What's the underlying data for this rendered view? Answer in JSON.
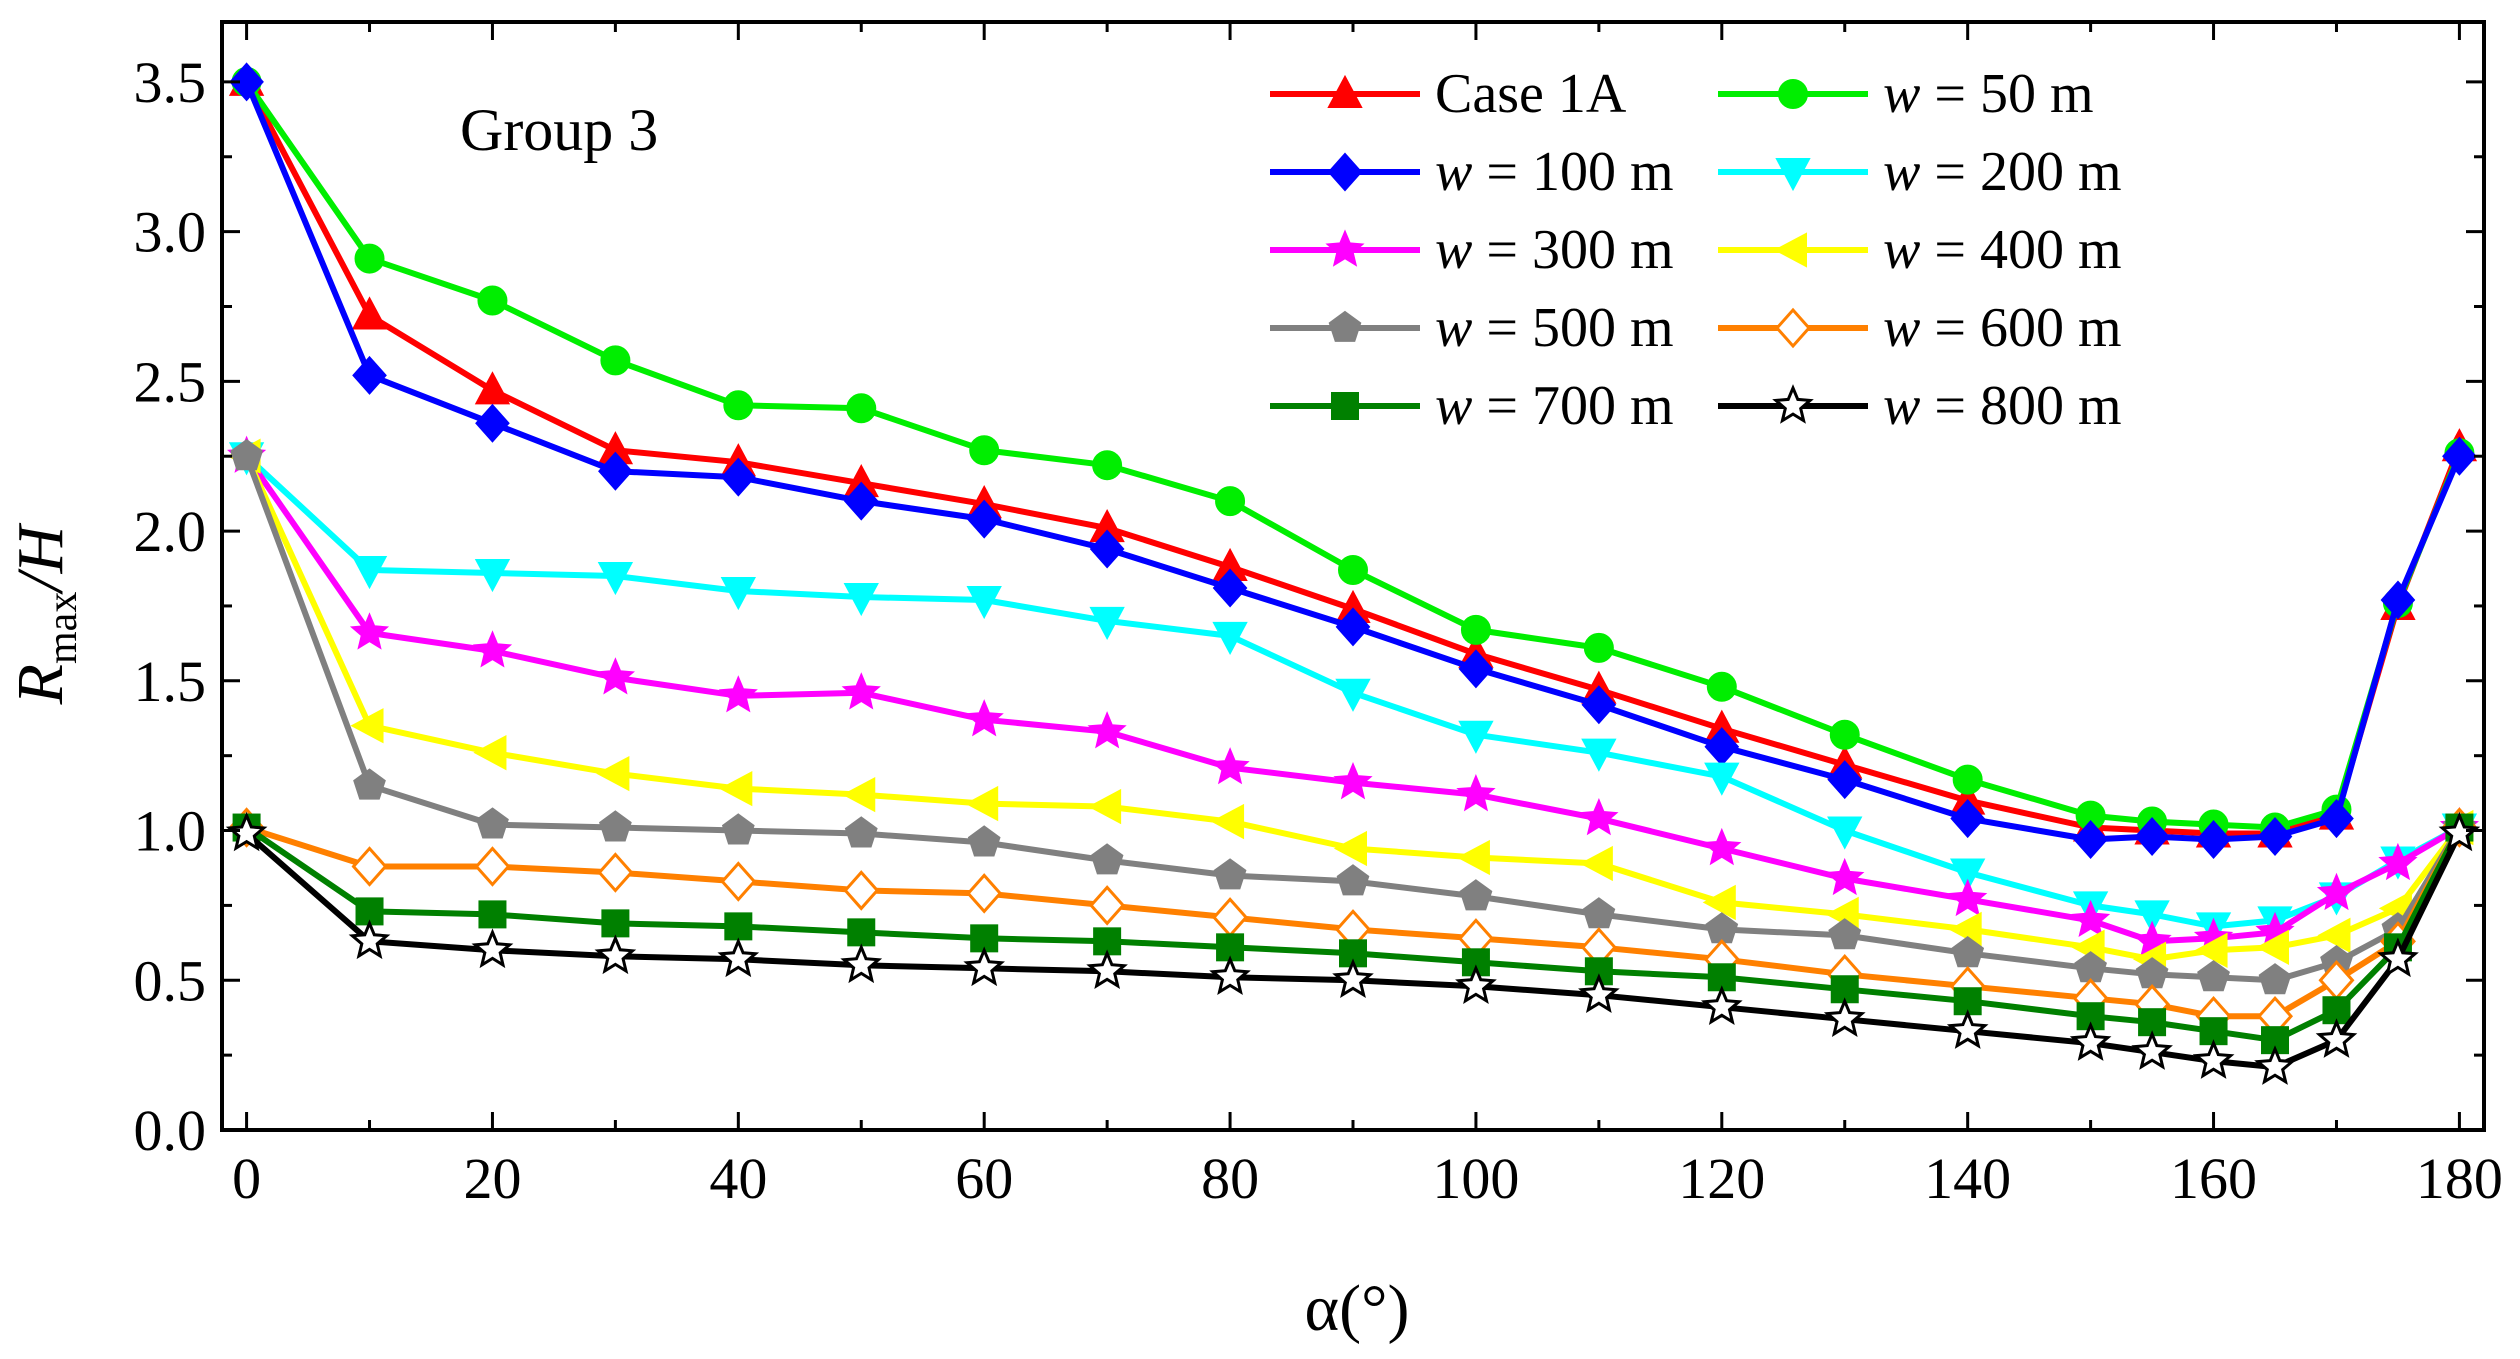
{
  "chart_data": {
    "type": "line",
    "title": "",
    "annotation": "Group 3",
    "xlabel": "α(°)",
    "ylabel_main": "R",
    "ylabel_sub": "max",
    "ylabel_tail": "/H",
    "xlim": [
      -2,
      182
    ],
    "ylim": [
      0,
      3.7
    ],
    "xticks": [
      0,
      20,
      40,
      60,
      80,
      100,
      120,
      140,
      160,
      180
    ],
    "xtick_labels": [
      "0",
      "20",
      "40",
      "60",
      "80",
      "100",
      "120",
      "140",
      "160",
      "180"
    ],
    "yticks": [
      0,
      0.5,
      1.0,
      1.5,
      2.0,
      2.5,
      3.0,
      3.5
    ],
    "ytick_labels": [
      "0.0",
      "0.5",
      "1.0",
      "1.5",
      "2.0",
      "2.5",
      "3.0",
      "3.5"
    ],
    "x": [
      0,
      10,
      20,
      30,
      40,
      50,
      60,
      70,
      80,
      90,
      100,
      110,
      120,
      130,
      140,
      150,
      155,
      160,
      165,
      170,
      175,
      180
    ],
    "legend_position": "top-right",
    "series": [
      {
        "name": "Case 1A",
        "italic_prefix": "",
        "label": "Case 1A",
        "color": "#ff0000",
        "marker": "triangle-up",
        "filled": true,
        "values": [
          3.5,
          2.72,
          2.47,
          2.27,
          2.23,
          2.16,
          2.09,
          2.01,
          1.88,
          1.74,
          1.59,
          1.47,
          1.34,
          1.22,
          1.1,
          1.01,
          1.0,
          0.99,
          0.99,
          1.05,
          1.75,
          2.28
        ]
      },
      {
        "name": "w = 50 m",
        "italic_prefix": "w",
        "label": " = 50 m",
        "color": "#00ee00",
        "marker": "circle",
        "filled": true,
        "values": [
          3.5,
          2.91,
          2.77,
          2.57,
          2.42,
          2.41,
          2.27,
          2.22,
          2.1,
          1.87,
          1.67,
          1.61,
          1.48,
          1.32,
          1.17,
          1.05,
          1.03,
          1.02,
          1.01,
          1.07,
          1.76,
          2.26
        ]
      },
      {
        "name": "w = 100 m",
        "italic_prefix": "w",
        "label": " = 100 m",
        "color": "#0000ff",
        "marker": "diamond",
        "filled": true,
        "values": [
          3.5,
          2.52,
          2.36,
          2.2,
          2.18,
          2.1,
          2.04,
          1.94,
          1.81,
          1.68,
          1.54,
          1.42,
          1.28,
          1.17,
          1.04,
          0.97,
          0.98,
          0.97,
          0.98,
          1.04,
          1.77,
          2.25
        ]
      },
      {
        "name": "w = 200 m",
        "italic_prefix": "w",
        "label": " = 200 m",
        "color": "#00ffff",
        "marker": "triangle-down",
        "filled": true,
        "values": [
          2.25,
          1.87,
          1.86,
          1.85,
          1.8,
          1.78,
          1.77,
          1.7,
          1.65,
          1.46,
          1.32,
          1.26,
          1.18,
          1.0,
          0.86,
          0.75,
          0.72,
          0.68,
          0.7,
          0.78,
          0.9,
          1.01
        ]
      },
      {
        "name": "w = 300 m",
        "italic_prefix": "w",
        "label": " = 300 m",
        "color": "#ff00ff",
        "marker": "star",
        "filled": true,
        "values": [
          2.25,
          1.66,
          1.6,
          1.51,
          1.45,
          1.46,
          1.37,
          1.33,
          1.21,
          1.16,
          1.12,
          1.04,
          0.94,
          0.84,
          0.77,
          0.7,
          0.63,
          0.64,
          0.66,
          0.79,
          0.89,
          1.01
        ]
      },
      {
        "name": "w = 400 m",
        "italic_prefix": "w",
        "label": " = 400 m",
        "color": "#ffff00",
        "marker": "triangle-left",
        "filled": true,
        "values": [
          2.25,
          1.35,
          1.26,
          1.19,
          1.14,
          1.12,
          1.09,
          1.08,
          1.03,
          0.94,
          0.91,
          0.89,
          0.76,
          0.72,
          0.67,
          0.61,
          0.57,
          0.6,
          0.61,
          0.65,
          0.74,
          1.01
        ]
      },
      {
        "name": "w = 500 m",
        "italic_prefix": "w",
        "label": " = 500 m",
        "color": "#808080",
        "marker": "pentagon",
        "filled": true,
        "values": [
          2.25,
          1.15,
          1.02,
          1.01,
          1.0,
          0.99,
          0.96,
          0.9,
          0.85,
          0.83,
          0.78,
          0.72,
          0.67,
          0.65,
          0.59,
          0.54,
          0.52,
          0.51,
          0.5,
          0.56,
          0.67,
          1.01
        ]
      },
      {
        "name": "w = 600 m",
        "italic_prefix": "w",
        "label": " = 600 m",
        "color": "#ff8000",
        "marker": "diamond",
        "filled": false,
        "values": [
          1.01,
          0.88,
          0.88,
          0.86,
          0.83,
          0.8,
          0.79,
          0.75,
          0.71,
          0.67,
          0.64,
          0.61,
          0.57,
          0.52,
          0.48,
          0.44,
          0.42,
          0.38,
          0.38,
          0.5,
          0.63,
          1.01
        ]
      },
      {
        "name": "w = 700 m",
        "italic_prefix": "w",
        "label": " = 700 m",
        "color": "#008000",
        "marker": "square",
        "filled": true,
        "values": [
          1.01,
          0.73,
          0.72,
          0.69,
          0.68,
          0.66,
          0.64,
          0.63,
          0.61,
          0.59,
          0.56,
          0.53,
          0.51,
          0.47,
          0.43,
          0.38,
          0.36,
          0.33,
          0.3,
          0.4,
          0.61,
          1.01
        ]
      },
      {
        "name": "w = 800 m",
        "italic_prefix": "w",
        "label": " = 800 m",
        "color": "#000000",
        "marker": "star",
        "filled": false,
        "values": [
          0.99,
          0.63,
          0.6,
          0.58,
          0.57,
          0.55,
          0.54,
          0.53,
          0.51,
          0.5,
          0.48,
          0.45,
          0.41,
          0.37,
          0.33,
          0.29,
          0.26,
          0.23,
          0.21,
          0.3,
          0.57,
          0.99
        ]
      }
    ]
  }
}
